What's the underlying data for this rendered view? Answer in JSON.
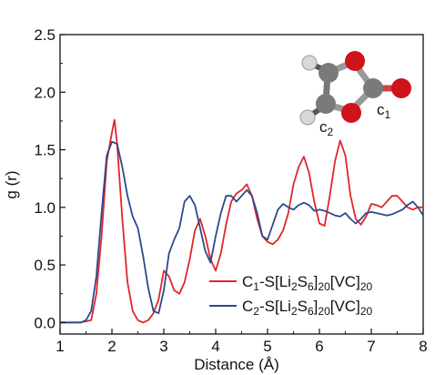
{
  "chart_data": {
    "type": "line",
    "xlabel": "Distance (Å)",
    "ylabel": "g (r)",
    "xlim": [
      1,
      8
    ],
    "ylim": [
      -0.1,
      2.5
    ],
    "x_ticks": [
      1,
      2,
      3,
      4,
      5,
      6,
      7,
      8
    ],
    "y_ticks": [
      0.0,
      0.5,
      1.0,
      1.5,
      2.0,
      2.5
    ],
    "x_tick_labels": [
      "1",
      "2",
      "3",
      "4",
      "5",
      "6",
      "7",
      "8"
    ],
    "y_tick_labels": [
      "0.0",
      "0.5",
      "1.0",
      "1.5",
      "2.0",
      "2.5"
    ],
    "legend_position": "lower-right",
    "grid": false,
    "inset": {
      "type": "molecule",
      "description_labels": [
        "c1",
        "c2"
      ]
    },
    "series": [
      {
        "name": "C1-S[Li2S6]20[VC]20",
        "legend_main_1": "C",
        "legend_sub_1": "1",
        "legend_main_2": "-S[Li",
        "legend_sub_2": "2",
        "legend_main_3": "S",
        "legend_sub_3": "6",
        "legend_main_4": "]",
        "legend_sub_4": "20",
        "legend_main_5": "[VC]",
        "legend_sub_5": "20",
        "color": "#e0262b",
        "x": [
          1.0,
          1.4,
          1.6,
          1.7,
          1.8,
          1.9,
          2.0,
          2.05,
          2.1,
          2.2,
          2.3,
          2.4,
          2.5,
          2.6,
          2.7,
          2.8,
          2.9,
          3.0,
          3.1,
          3.2,
          3.3,
          3.4,
          3.5,
          3.6,
          3.7,
          3.8,
          3.9,
          4.0,
          4.1,
          4.2,
          4.3,
          4.4,
          4.5,
          4.6,
          4.7,
          4.8,
          4.9,
          5.0,
          5.1,
          5.2,
          5.3,
          5.4,
          5.5,
          5.6,
          5.7,
          5.8,
          5.9,
          6.0,
          6.1,
          6.2,
          6.3,
          6.4,
          6.5,
          6.6,
          6.7,
          6.8,
          6.9,
          7.0,
          7.1,
          7.2,
          7.3,
          7.4,
          7.5,
          7.6,
          7.7,
          7.8,
          7.9,
          8.0
        ],
        "y": [
          0.0,
          0.0,
          0.02,
          0.25,
          0.75,
          1.4,
          1.65,
          1.76,
          1.55,
          0.9,
          0.35,
          0.1,
          0.02,
          0.0,
          0.02,
          0.08,
          0.2,
          0.45,
          0.4,
          0.28,
          0.25,
          0.35,
          0.55,
          0.8,
          0.9,
          0.75,
          0.55,
          0.45,
          0.6,
          0.85,
          1.05,
          1.12,
          1.15,
          1.2,
          1.1,
          0.9,
          0.75,
          0.7,
          0.68,
          0.72,
          0.8,
          0.95,
          1.2,
          1.35,
          1.44,
          1.3,
          1.05,
          0.86,
          0.84,
          1.1,
          1.4,
          1.58,
          1.45,
          1.1,
          0.9,
          0.85,
          0.92,
          1.03,
          1.02,
          1.0,
          1.05,
          1.1,
          1.1,
          1.05,
          1.0,
          0.98,
          1.0,
          1.0
        ]
      },
      {
        "name": "C2-S[Li2S6]20[VC]20",
        "legend_main_1": "C",
        "legend_sub_1": "2",
        "legend_main_2": "-S[Li",
        "legend_sub_2": "2",
        "legend_main_3": "S",
        "legend_sub_3": "6",
        "legend_main_4": "]",
        "legend_sub_4": "20",
        "legend_main_5": "[VC]",
        "legend_sub_5": "20",
        "color": "#2c4a8c",
        "x": [
          1.0,
          1.4,
          1.5,
          1.6,
          1.7,
          1.8,
          1.9,
          2.0,
          2.1,
          2.2,
          2.3,
          2.4,
          2.5,
          2.6,
          2.7,
          2.8,
          2.9,
          3.0,
          3.1,
          3.2,
          3.3,
          3.4,
          3.5,
          3.6,
          3.7,
          3.8,
          3.9,
          4.0,
          4.1,
          4.2,
          4.3,
          4.4,
          4.5,
          4.6,
          4.7,
          4.8,
          4.9,
          5.0,
          5.1,
          5.2,
          5.3,
          5.4,
          5.5,
          5.6,
          5.7,
          5.8,
          5.9,
          6.0,
          6.1,
          6.2,
          6.3,
          6.4,
          6.5,
          6.6,
          6.7,
          6.8,
          6.9,
          7.0,
          7.1,
          7.2,
          7.3,
          7.4,
          7.5,
          7.6,
          7.7,
          7.8,
          7.9,
          8.0
        ],
        "y": [
          0.0,
          0.0,
          0.02,
          0.1,
          0.4,
          0.95,
          1.45,
          1.57,
          1.55,
          1.35,
          1.1,
          0.92,
          0.82,
          0.58,
          0.3,
          0.1,
          0.08,
          0.28,
          0.6,
          0.72,
          0.82,
          1.05,
          1.1,
          1.02,
          0.82,
          0.62,
          0.52,
          0.75,
          0.95,
          1.1,
          1.1,
          1.05,
          1.1,
          1.15,
          1.1,
          0.95,
          0.75,
          0.72,
          0.85,
          0.98,
          1.03,
          1.0,
          0.98,
          1.02,
          1.04,
          1.02,
          0.97,
          0.98,
          0.97,
          0.95,
          0.93,
          0.92,
          0.95,
          0.9,
          0.86,
          0.9,
          0.95,
          0.96,
          0.95,
          0.94,
          0.93,
          0.94,
          0.96,
          0.98,
          1.02,
          1.05,
          1.0,
          0.93
        ]
      }
    ]
  }
}
